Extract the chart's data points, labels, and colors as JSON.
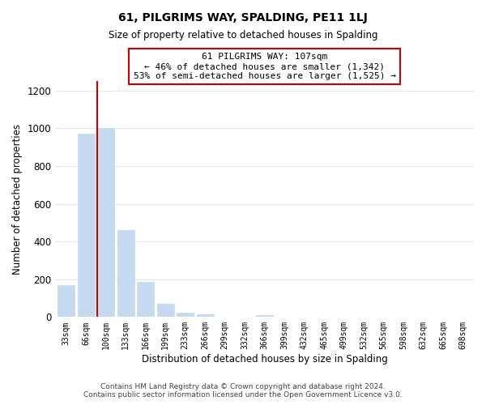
{
  "title": "61, PILGRIMS WAY, SPALDING, PE11 1LJ",
  "subtitle": "Size of property relative to detached houses in Spalding",
  "xlabel": "Distribution of detached houses by size in Spalding",
  "ylabel": "Number of detached properties",
  "bar_labels": [
    "33sqm",
    "66sqm",
    "100sqm",
    "133sqm",
    "166sqm",
    "199sqm",
    "233sqm",
    "266sqm",
    "299sqm",
    "332sqm",
    "366sqm",
    "399sqm",
    "432sqm",
    "465sqm",
    "499sqm",
    "532sqm",
    "565sqm",
    "598sqm",
    "632sqm",
    "665sqm",
    "698sqm"
  ],
  "bar_values": [
    170,
    970,
    1000,
    460,
    185,
    70,
    22,
    14,
    0,
    0,
    12,
    0,
    0,
    0,
    0,
    0,
    0,
    0,
    0,
    0,
    0
  ],
  "bar_color": "#c5d9f0",
  "highlight_bar_index": 2,
  "vline_color": "#cc0000",
  "annotation_text": "61 PILGRIMS WAY: 107sqm\n← 46% of detached houses are smaller (1,342)\n53% of semi-detached houses are larger (1,525) →",
  "annotation_box_edgecolor": "#cc0000",
  "ylim": [
    0,
    1250
  ],
  "yticks": [
    0,
    200,
    400,
    600,
    800,
    1000,
    1200
  ],
  "footer_line1": "Contains HM Land Registry data © Crown copyright and database right 2024.",
  "footer_line2": "Contains public sector information licensed under the Open Government Licence v3.0.",
  "bg_color": "#ffffff",
  "grid_color": "#dde8f2"
}
